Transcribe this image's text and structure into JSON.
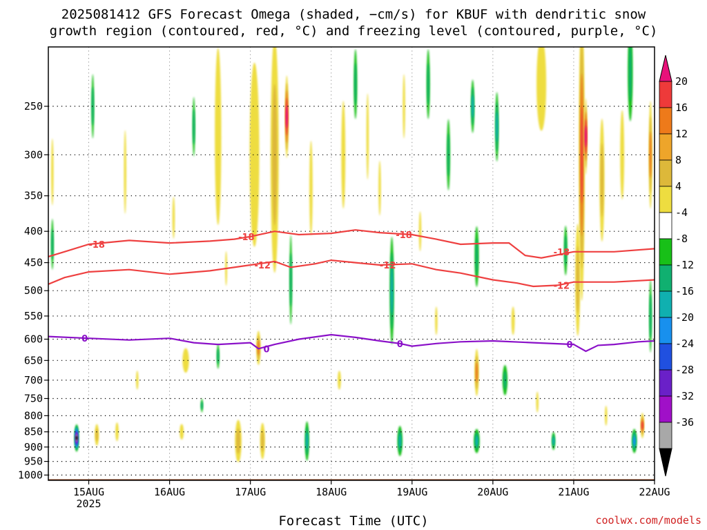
{
  "header": {
    "title_line1": "2025081412 GFS Forecast Omega (shaded, −cm/s) for KBUF with dendritic snow",
    "title_line2": "growth region (contoured, red, °C) and freezing level (contoured, purple, °C)"
  },
  "footer": {
    "xlabel": "Forecast Time (UTC)",
    "credit": "coolwx.com/models"
  },
  "chart_data": {
    "type": "heatmap",
    "title": "2025081412 GFS Forecast Omega (shaded, −cm/s) for KBUF with dendritic snow growth region (contoured, red, °C) and freezing level (contoured, purple, °C)",
    "xlabel": "Forecast Time (UTC)",
    "ylabel": "",
    "y_axis": {
      "scale": "log",
      "reversed": true,
      "range": [
        1020,
        200
      ],
      "ticks": [
        250,
        300,
        350,
        400,
        450,
        500,
        550,
        600,
        650,
        700,
        750,
        800,
        850,
        900,
        950,
        1000
      ]
    },
    "x_axis": {
      "range_days": [
        14.5,
        22.0
      ],
      "ticks": [
        {
          "day": 15,
          "label": "15AUG",
          "sublabel": "2025"
        },
        {
          "day": 16,
          "label": "16AUG",
          "sublabel": ""
        },
        {
          "day": 17,
          "label": "17AUG",
          "sublabel": ""
        },
        {
          "day": 18,
          "label": "18AUG",
          "sublabel": ""
        },
        {
          "day": 19,
          "label": "19AUG",
          "sublabel": ""
        },
        {
          "day": 20,
          "label": "20AUG",
          "sublabel": ""
        },
        {
          "day": 21,
          "label": "21AUG",
          "sublabel": ""
        },
        {
          "day": 22,
          "label": "22AUG",
          "sublabel": ""
        }
      ]
    },
    "grid": true,
    "colorbar": {
      "labels": [
        20,
        16,
        12,
        8,
        4,
        -4,
        -8,
        -12,
        -16,
        -20,
        -24,
        -28,
        -32,
        -36
      ],
      "colors": [
        "#e8127a",
        "#ee3a3a",
        "#ee7a1a",
        "#eea52a",
        "#ddb83a",
        "#eedd40",
        "#ffffff",
        "#18c018",
        "#10b070",
        "#10b0b0",
        "#1890ee",
        "#2050e0",
        "#6a20c8",
        "#a010c8",
        "#a8a8a8",
        "#000000"
      ]
    },
    "ground_color": "#a0522d",
    "contours": [
      {
        "name": "-18",
        "color": "#ee4040",
        "points": [
          [
            14.5,
            440
          ],
          [
            14.7,
            432
          ],
          [
            15.0,
            420
          ],
          [
            15.5,
            414
          ],
          [
            16.0,
            418
          ],
          [
            16.5,
            415
          ],
          [
            16.8,
            412
          ],
          [
            17.0,
            408
          ],
          [
            17.3,
            400
          ],
          [
            17.6,
            405
          ],
          [
            18.0,
            403
          ],
          [
            18.3,
            398
          ],
          [
            18.6,
            402
          ],
          [
            19.0,
            405
          ],
          [
            19.3,
            412
          ],
          [
            19.6,
            420
          ],
          [
            20.0,
            418
          ],
          [
            20.2,
            418
          ],
          [
            20.4,
            438
          ],
          [
            20.6,
            442
          ],
          [
            21.0,
            432
          ],
          [
            21.5,
            432
          ],
          [
            22.0,
            427
          ]
        ],
        "labels": [
          [
            15.1,
            "-18"
          ],
          [
            16.95,
            "-18"
          ],
          [
            18.9,
            "-18"
          ],
          [
            20.85,
            "-18"
          ]
        ]
      },
      {
        "name": "-12",
        "color": "#ee4040",
        "points": [
          [
            14.5,
            488
          ],
          [
            14.7,
            476
          ],
          [
            15.0,
            466
          ],
          [
            15.5,
            462
          ],
          [
            16.0,
            470
          ],
          [
            16.5,
            464
          ],
          [
            17.0,
            454
          ],
          [
            17.3,
            448
          ],
          [
            17.5,
            458
          ],
          [
            17.8,
            452
          ],
          [
            18.0,
            446
          ],
          [
            18.3,
            450
          ],
          [
            18.6,
            454
          ],
          [
            19.0,
            452
          ],
          [
            19.3,
            462
          ],
          [
            19.6,
            468
          ],
          [
            20.0,
            480
          ],
          [
            20.3,
            486
          ],
          [
            20.5,
            492
          ],
          [
            20.8,
            490
          ],
          [
            21.0,
            484
          ],
          [
            21.5,
            484
          ],
          [
            22.0,
            480
          ]
        ],
        "labels": [
          [
            17.15,
            "-12"
          ],
          [
            18.7,
            "-12"
          ],
          [
            20.85,
            "-12"
          ]
        ]
      },
      {
        "name": "0",
        "color": "#8a10c8",
        "points": [
          [
            14.5,
            594
          ],
          [
            15.0,
            598
          ],
          [
            15.5,
            602
          ],
          [
            16.0,
            598
          ],
          [
            16.3,
            608
          ],
          [
            16.6,
            612
          ],
          [
            17.0,
            608
          ],
          [
            17.1,
            622
          ],
          [
            17.3,
            612
          ],
          [
            17.6,
            600
          ],
          [
            18.0,
            590
          ],
          [
            18.3,
            596
          ],
          [
            18.6,
            604
          ],
          [
            18.85,
            610
          ],
          [
            19.0,
            616
          ],
          [
            19.3,
            610
          ],
          [
            19.6,
            606
          ],
          [
            20.0,
            604
          ],
          [
            20.5,
            608
          ],
          [
            21.0,
            612
          ],
          [
            21.15,
            628
          ],
          [
            21.3,
            614
          ],
          [
            21.5,
            612
          ],
          [
            21.8,
            606
          ],
          [
            22.0,
            604
          ]
        ],
        "labels": [
          [
            14.95,
            "0"
          ],
          [
            17.2,
            "0"
          ],
          [
            18.85,
            "0"
          ],
          [
            20.95,
            "0"
          ]
        ]
      }
    ],
    "omega_regions": [
      {
        "day": 14.85,
        "p": 870,
        "dd": 0.05,
        "dp": 90,
        "v": -36
      },
      {
        "day": 15.1,
        "p": 860,
        "dd": 0.05,
        "dp": 70,
        "v": 10
      },
      {
        "day": 15.35,
        "p": 850,
        "dd": 0.04,
        "dp": 60,
        "v": 5
      },
      {
        "day": 16.15,
        "p": 850,
        "dd": 0.05,
        "dp": 50,
        "v": 5
      },
      {
        "day": 16.2,
        "p": 650,
        "dd": 0.08,
        "dp": 60,
        "v": 5
      },
      {
        "day": 16.4,
        "p": 770,
        "dd": 0.02,
        "dp": 40,
        "v": -8
      },
      {
        "day": 16.6,
        "p": 640,
        "dd": 0.03,
        "dp": 60,
        "v": -8
      },
      {
        "day": 16.85,
        "p": 880,
        "dd": 0.08,
        "dp": 140,
        "v": 9
      },
      {
        "day": 17.15,
        "p": 880,
        "dd": 0.06,
        "dp": 120,
        "v": 9
      },
      {
        "day": 17.1,
        "p": 620,
        "dd": 0.05,
        "dp": 80,
        "v": 12
      },
      {
        "day": 17.45,
        "p": 260,
        "dd": 0.04,
        "dp": 80,
        "v": 21
      },
      {
        "day": 17.3,
        "p": 300,
        "dd": 0.1,
        "dp": 250,
        "v": 9
      },
      {
        "day": 17.05,
        "p": 300,
        "dd": 0.12,
        "dp": 200,
        "v": 5
      },
      {
        "day": 16.6,
        "p": 280,
        "dd": 0.08,
        "dp": 180,
        "v": 5
      },
      {
        "day": 17.7,
        "p": 880,
        "dd": 0.05,
        "dp": 130,
        "v": -12
      },
      {
        "day": 17.5,
        "p": 480,
        "dd": 0.03,
        "dp": 160,
        "v": -8
      },
      {
        "day": 17.75,
        "p": 340,
        "dd": 0.04,
        "dp": 120,
        "v": 5
      },
      {
        "day": 18.15,
        "p": 300,
        "dd": 0.05,
        "dp": 120,
        "v": 5
      },
      {
        "day": 18.3,
        "p": 230,
        "dd": 0.04,
        "dp": 60,
        "v": -8
      },
      {
        "day": 18.1,
        "p": 700,
        "dd": 0.04,
        "dp": 50,
        "v": 5
      },
      {
        "day": 18.75,
        "p": 500,
        "dd": 0.05,
        "dp": 200,
        "v": -12
      },
      {
        "day": 18.85,
        "p": 880,
        "dd": 0.06,
        "dp": 100,
        "v": -12
      },
      {
        "day": 18.45,
        "p": 280,
        "dd": 0.03,
        "dp": 90,
        "v": 5
      },
      {
        "day": 19.2,
        "p": 230,
        "dd": 0.04,
        "dp": 60,
        "v": -8
      },
      {
        "day": 19.1,
        "p": 400,
        "dd": 0.03,
        "dp": 60,
        "v": 5
      },
      {
        "day": 19.45,
        "p": 300,
        "dd": 0.04,
        "dp": 80,
        "v": -8
      },
      {
        "day": 19.75,
        "p": 250,
        "dd": 0.04,
        "dp": 50,
        "v": -12
      },
      {
        "day": 19.8,
        "p": 680,
        "dd": 0.05,
        "dp": 120,
        "v": 12
      },
      {
        "day": 19.8,
        "p": 880,
        "dd": 0.07,
        "dp": 80,
        "v": -12
      },
      {
        "day": 19.8,
        "p": 440,
        "dd": 0.05,
        "dp": 100,
        "v": -8
      },
      {
        "day": 20.05,
        "p": 270,
        "dd": 0.04,
        "dp": 70,
        "v": -12
      },
      {
        "day": 20.15,
        "p": 700,
        "dd": 0.06,
        "dp": 80,
        "v": -8
      },
      {
        "day": 20.6,
        "p": 230,
        "dd": 0.12,
        "dp": 80,
        "v": 5
      },
      {
        "day": 20.75,
        "p": 880,
        "dd": 0.04,
        "dp": 60,
        "v": -12
      },
      {
        "day": 20.9,
        "p": 430,
        "dd": 0.04,
        "dp": 80,
        "v": -8
      },
      {
        "day": 21.1,
        "p": 300,
        "dd": 0.07,
        "dp": 300,
        "v": 16
      },
      {
        "day": 21.15,
        "p": 280,
        "dd": 0.03,
        "dp": 80,
        "v": 21
      },
      {
        "day": 21.05,
        "p": 480,
        "dd": 0.06,
        "dp": 200,
        "v": 9
      },
      {
        "day": 21.35,
        "p": 330,
        "dd": 0.06,
        "dp": 150,
        "v": 9
      },
      {
        "day": 21.6,
        "p": 300,
        "dd": 0.05,
        "dp": 100,
        "v": 5
      },
      {
        "day": 21.7,
        "p": 220,
        "dd": 0.06,
        "dp": 80,
        "v": -8
      },
      {
        "day": 21.75,
        "p": 880,
        "dd": 0.06,
        "dp": 80,
        "v": -16
      },
      {
        "day": 21.85,
        "p": 830,
        "dd": 0.04,
        "dp": 80,
        "v": 16
      },
      {
        "day": 21.95,
        "p": 300,
        "dd": 0.04,
        "dp": 120,
        "v": 12
      },
      {
        "day": 21.95,
        "p": 550,
        "dd": 0.03,
        "dp": 150,
        "v": -8
      },
      {
        "day": 15.05,
        "p": 250,
        "dd": 0.03,
        "dp": 60,
        "v": -8
      },
      {
        "day": 15.45,
        "p": 320,
        "dd": 0.03,
        "dp": 100,
        "v": 5
      },
      {
        "day": 14.55,
        "p": 320,
        "dd": 0.03,
        "dp": 80,
        "v": 5
      },
      {
        "day": 14.55,
        "p": 420,
        "dd": 0.03,
        "dp": 80,
        "v": -8
      },
      {
        "day": 16.3,
        "p": 270,
        "dd": 0.03,
        "dp": 60,
        "v": -8
      },
      {
        "day": 16.05,
        "p": 380,
        "dd": 0.03,
        "dp": 60,
        "v": 5
      },
      {
        "day": 18.6,
        "p": 340,
        "dd": 0.03,
        "dp": 70,
        "v": 5
      },
      {
        "day": 19.3,
        "p": 560,
        "dd": 0.03,
        "dp": 60,
        "v": 5
      },
      {
        "day": 20.25,
        "p": 560,
        "dd": 0.04,
        "dp": 60,
        "v": 5
      },
      {
        "day": 20.55,
        "p": 760,
        "dd": 0.03,
        "dp": 60,
        "v": 5
      },
      {
        "day": 21.4,
        "p": 800,
        "dd": 0.03,
        "dp": 60,
        "v": 5
      },
      {
        "day": 15.6,
        "p": 700,
        "dd": 0.03,
        "dp": 50,
        "v": 5
      },
      {
        "day": 16.7,
        "p": 460,
        "dd": 0.02,
        "dp": 60,
        "v": 5
      },
      {
        "day": 18.9,
        "p": 250,
        "dd": 0.03,
        "dp": 60,
        "v": 5
      }
    ]
  }
}
